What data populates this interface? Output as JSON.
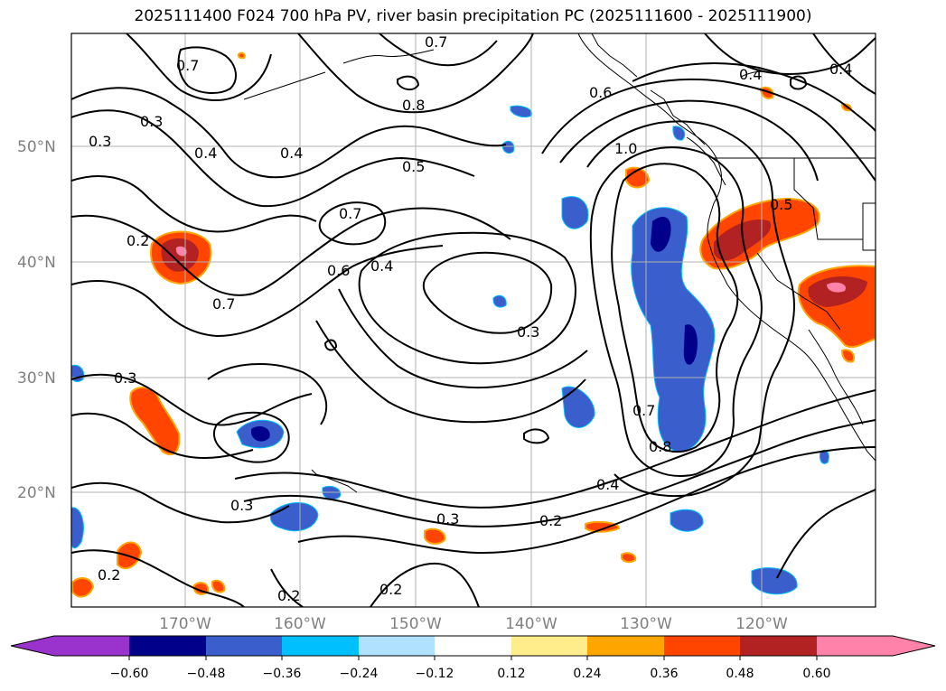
{
  "title": "2025111400 F024 700 hPa PV, river basin precipitation PC (2025111600 - 2025111900)",
  "longitude_ticks": [
    "170°W",
    "160°W",
    "150°W",
    "140°W",
    "130°W",
    "120°W"
  ],
  "latitude_ticks": [
    "50°N",
    "40°N",
    "30°N",
    "20°N"
  ],
  "colorbar": {
    "ticks": [
      "−0.60",
      "−0.48",
      "−0.36",
      "−0.24",
      "−0.12",
      "0.12",
      "0.24",
      "0.36",
      "0.48",
      "0.60"
    ],
    "colors": [
      "#9a32cd",
      "#00008b",
      "#3a5fcd",
      "#00bfff",
      "#b0e2ff",
      "#ffffff",
      "#ffec8b",
      "#ffa500",
      "#ff4500",
      "#b22222",
      "#ff82ab"
    ]
  },
  "contour_labels": [
    "0.7",
    "0.3",
    "0.3",
    "0.4",
    "0.8",
    "0.4",
    "0.5",
    "0.6",
    "0.7",
    "1.0",
    "0.4",
    "0.2",
    "0.7",
    "0.6",
    "0.4",
    "0.3",
    "0.5",
    "0.3",
    "0.7",
    "0.8",
    "0.4",
    "0.3",
    "0.2",
    "0.2",
    "0.3",
    "0.2",
    "0.2",
    "0.7",
    "0.4"
  ]
}
